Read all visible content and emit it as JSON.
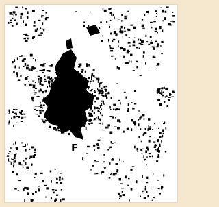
{
  "map": {
    "label": "F"
  }
}
